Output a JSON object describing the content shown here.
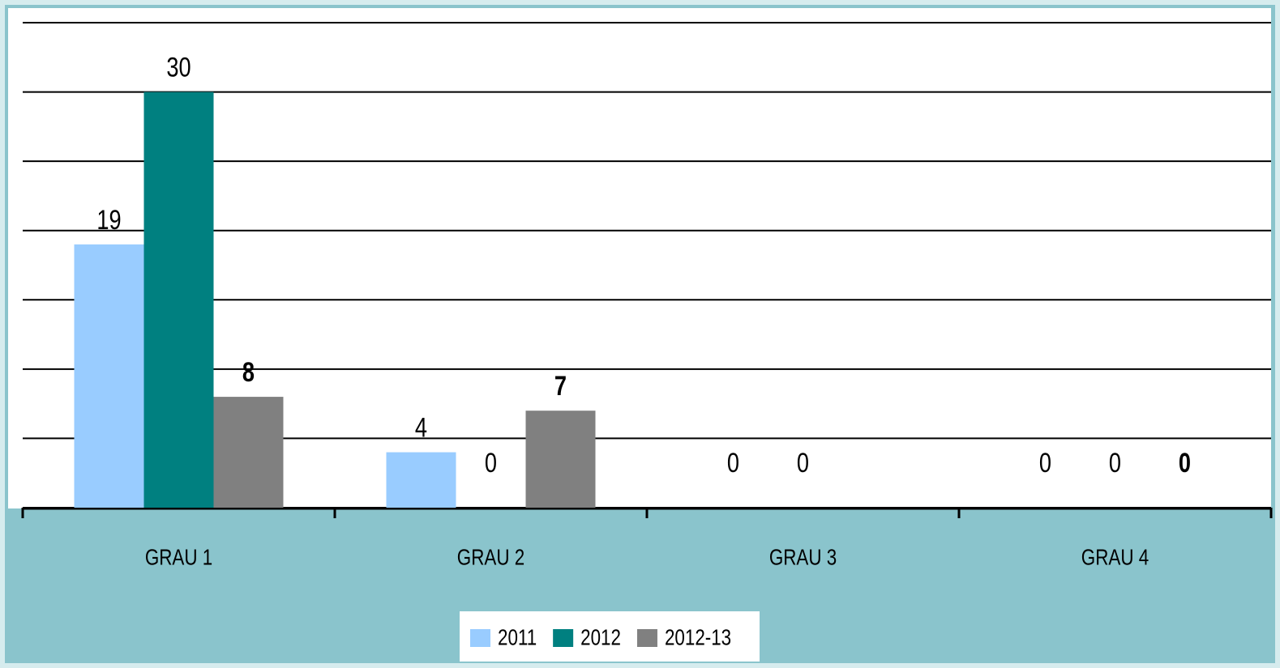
{
  "chart_data": {
    "type": "bar",
    "categories": [
      "GRAU 1",
      "GRAU 2",
      "GRAU 3",
      "GRAU 4"
    ],
    "series": [
      {
        "name": "2011",
        "color": "#99ccff",
        "values": [
          19,
          4,
          0,
          0
        ]
      },
      {
        "name": "2012",
        "color": "#008080",
        "values": [
          30,
          0,
          0,
          0
        ]
      },
      {
        "name": "2012-13",
        "color": "#808080",
        "values": [
          8,
          7,
          null,
          0
        ],
        "label_weight": "bold"
      }
    ],
    "ylim": [
      0,
      35
    ],
    "yticks": [
      0,
      5,
      10,
      15,
      20,
      25,
      30,
      35
    ],
    "grid": true,
    "legend": "bottom"
  }
}
